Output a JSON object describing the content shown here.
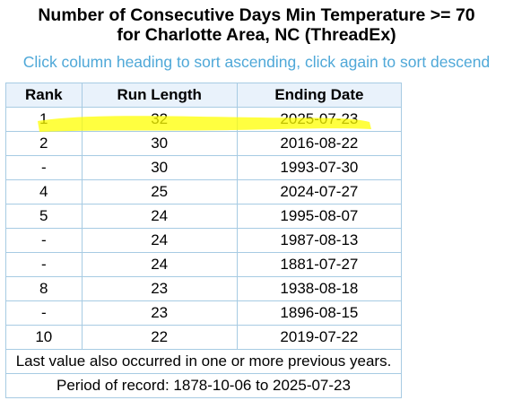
{
  "title": {
    "line1": "Number of Consecutive Days Min Temperature >= 70",
    "line2": "for Charlotte Area, NC (ThreadEx)"
  },
  "instructions": "Click column heading to sort ascending, click again to sort descend",
  "table": {
    "headers": [
      "Rank",
      "Run Length",
      "Ending Date"
    ],
    "rows": [
      {
        "rank": "1",
        "run_length": "32",
        "ending_date": "2025-07-23"
      },
      {
        "rank": "2",
        "run_length": "30",
        "ending_date": "2016-08-22"
      },
      {
        "rank": "-",
        "run_length": "30",
        "ending_date": "1993-07-30"
      },
      {
        "rank": "4",
        "run_length": "25",
        "ending_date": "2024-07-27"
      },
      {
        "rank": "5",
        "run_length": "24",
        "ending_date": "1995-08-07"
      },
      {
        "rank": "-",
        "run_length": "24",
        "ending_date": "1987-08-13"
      },
      {
        "rank": "-",
        "run_length": "24",
        "ending_date": "1881-07-27"
      },
      {
        "rank": "8",
        "run_length": "23",
        "ending_date": "1938-08-18"
      },
      {
        "rank": "-",
        "run_length": "23",
        "ending_date": "1896-08-15"
      },
      {
        "rank": "10",
        "run_length": "22",
        "ending_date": "2019-07-22"
      }
    ],
    "footnote": "Last value also occurred in one or more previous years.",
    "period": "Period of record: 1878-10-06 to 2025-07-23"
  },
  "colors": {
    "link_text": "#4fa8d8",
    "table_border": "#6aaed6",
    "header_bg": "#e9f2fb",
    "highlight": "#ffff00"
  }
}
